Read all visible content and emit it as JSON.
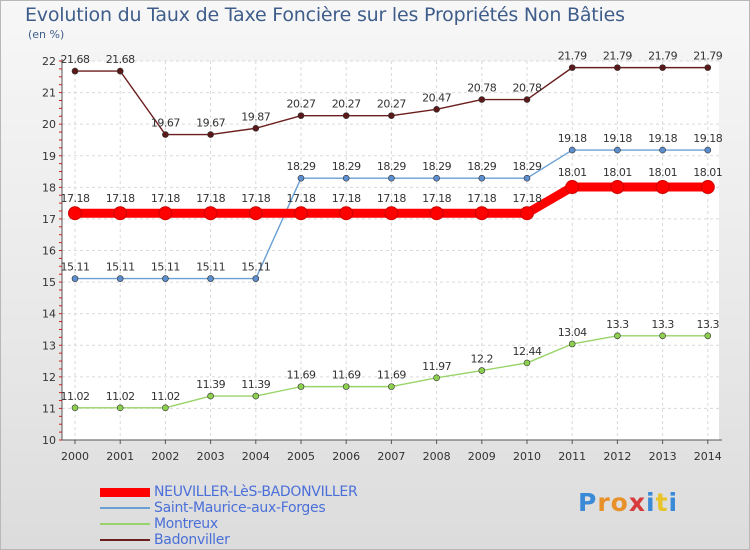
{
  "title": "Evolution du Taux de Taxe Foncière sur les Propriétés Non Bâties",
  "unit_label": "(en %)",
  "logo_text": "Proxiti",
  "chart_data": {
    "type": "line",
    "title": "Evolution du Taux de Taxe Foncière sur les Propriétés Non Bâties",
    "ylabel": "(en %)",
    "xlabel": "",
    "x": [
      "2000",
      "2001",
      "2002",
      "2003",
      "2004",
      "2005",
      "2006",
      "2007",
      "2008",
      "2009",
      "2010",
      "2011",
      "2012",
      "2013",
      "2014"
    ],
    "ylim": [
      10,
      22
    ],
    "yticks": [
      10,
      11,
      12,
      13,
      14,
      15,
      16,
      17,
      18,
      19,
      20,
      21,
      22
    ],
    "grid": true,
    "legend_position": "bottom-left",
    "series": [
      {
        "name": "NEUVILLER-LèS-BADONVILLER",
        "color": "#ff0000",
        "values": [
          17.18,
          17.18,
          17.18,
          17.18,
          17.18,
          17.18,
          17.18,
          17.18,
          17.18,
          17.18,
          17.18,
          18.01,
          18.01,
          18.01,
          18.01
        ],
        "labels": [
          "17.18",
          "17.18",
          "17.18",
          "17.18",
          "17.18",
          "17.18",
          "17.18",
          "17.18",
          "17.18",
          "17.18",
          "17.18",
          "18.01",
          "18.01",
          "18.01",
          "18.01"
        ]
      },
      {
        "name": "Saint-Maurice-aux-Forges",
        "color": "#6a9fd4",
        "values": [
          15.11,
          15.11,
          15.11,
          15.11,
          15.11,
          18.29,
          18.29,
          18.29,
          18.29,
          18.29,
          18.29,
          19.18,
          19.18,
          19.18,
          19.18
        ],
        "labels": [
          "15.11",
          "15.11",
          "15.11",
          "15.11",
          "15.11",
          "18.29",
          "18.29",
          "18.29",
          "18.29",
          "18.29",
          "18.29",
          "19.18",
          "19.18",
          "19.18",
          "19.18"
        ]
      },
      {
        "name": "Montreux",
        "color": "#99d46a",
        "values": [
          11.02,
          11.02,
          11.02,
          11.39,
          11.39,
          11.69,
          11.69,
          11.69,
          11.97,
          12.2,
          12.44,
          13.04,
          13.3,
          13.3,
          13.3
        ],
        "labels": [
          "11.02",
          "11.02",
          "11.02",
          "11.39",
          "11.39",
          "11.69",
          "11.69",
          "11.69",
          "11.97",
          "12.2",
          "12.44",
          "13.04",
          "13.3",
          "13.3",
          "13.3"
        ]
      },
      {
        "name": "Badonviller",
        "color": "#6b1e1e",
        "values": [
          21.68,
          21.68,
          19.67,
          19.67,
          19.87,
          20.27,
          20.27,
          20.27,
          20.47,
          20.78,
          20.78,
          21.79,
          21.79,
          21.79,
          21.79
        ],
        "labels": [
          "21.68",
          "21.68",
          "19.67",
          "19.67",
          "19.87",
          "20.27",
          "20.27",
          "20.27",
          "20.47",
          "20.78",
          "20.78",
          "21.79",
          "21.79",
          "21.79",
          "21.79"
        ]
      }
    ]
  }
}
